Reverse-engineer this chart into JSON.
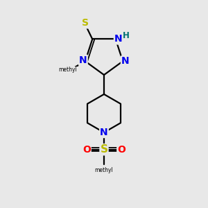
{
  "bg_color": "#e8e8e8",
  "bond_color": "#000000",
  "N_color": "#0000ee",
  "S_color": "#bbbb00",
  "O_color": "#ff0000",
  "H_color": "#007070",
  "line_width": 1.6,
  "xlim": [
    0,
    10
  ],
  "ylim": [
    0,
    10
  ]
}
